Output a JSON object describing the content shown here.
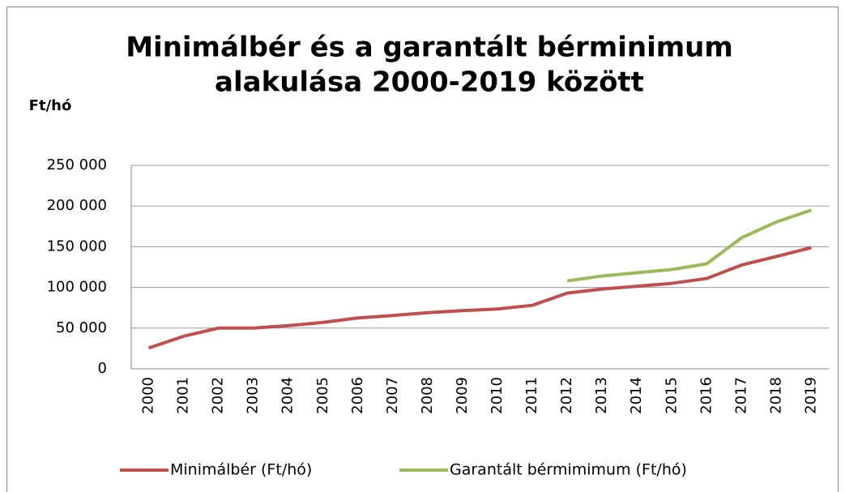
{
  "chart_data": {
    "type": "line",
    "title": "Minimálbér és a garantált bérminimum alakulása 2000-2019 között",
    "title_lines": [
      "Minimálbér és a garantált bérminimum",
      "alakulása 2000-2019 között"
    ],
    "y_label": "Ft/hó",
    "categories": [
      "2000",
      "2001",
      "2002",
      "2003",
      "2004",
      "2005",
      "2006",
      "2007",
      "2008",
      "2009",
      "2010",
      "2011",
      "2012",
      "2013",
      "2014",
      "2015",
      "2016",
      "2017",
      "2018",
      "2019"
    ],
    "series": [
      {
        "name": "Minimálbér (Ft/hó)",
        "color": "#c0504d",
        "values": [
          25500,
          40000,
          50000,
          50000,
          53000,
          57000,
          62500,
          65500,
          69000,
          71500,
          73500,
          78000,
          93000,
          98000,
          101500,
          105000,
          111000,
          127500,
          138000,
          149000
        ]
      },
      {
        "name": "Garantált bérmimimum (Ft/hó)",
        "color": "#9bbb59",
        "values": [
          null,
          null,
          null,
          null,
          null,
          null,
          null,
          null,
          null,
          null,
          null,
          null,
          108000,
          114000,
          118000,
          122000,
          129000,
          161000,
          180500,
          195000
        ]
      }
    ],
    "ylim": [
      0,
      250000
    ],
    "yticks": [
      0,
      {
        "value": 50000,
        "label": "50 000"
      },
      {
        "value": 100000,
        "label": "100 000"
      },
      {
        "value": 150000,
        "label": "150 000"
      },
      {
        "value": 200000,
        "label": "200 000"
      },
      {
        "value": 250000,
        "label": "250 000"
      }
    ],
    "grid": true,
    "legend": "bottom"
  }
}
